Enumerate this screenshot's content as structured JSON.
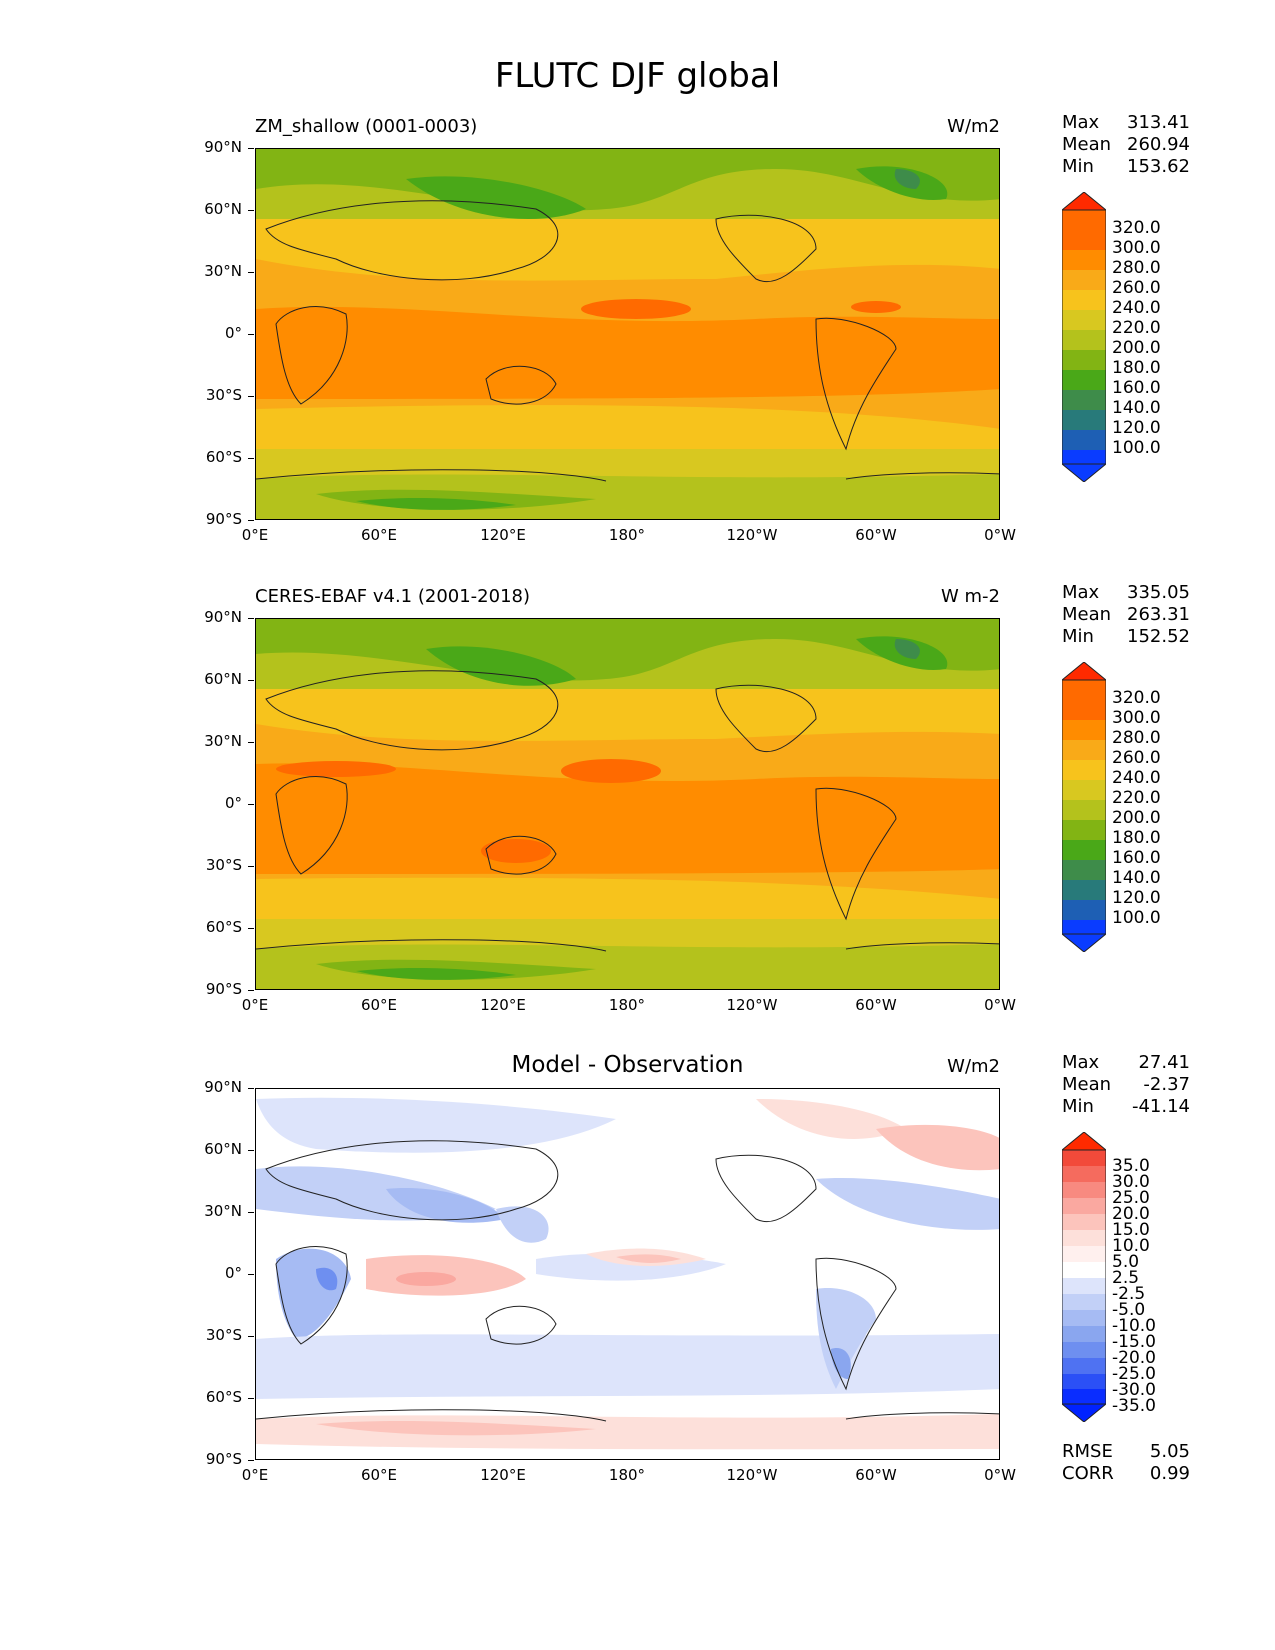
{
  "figure_title": "FLUTC DJF global",
  "x_ticks": [
    "0°E",
    "60°E",
    "120°E",
    "180°",
    "120°W",
    "60°W",
    "0°W"
  ],
  "y_ticks": [
    "90°N",
    "60°N",
    "30°N",
    "0°",
    "30°S",
    "60°S",
    "90°S"
  ],
  "panels": [
    {
      "title": "ZM_shallow (0001-0003)",
      "units": "W/m2",
      "stats": {
        "max_label": "Max",
        "max": "313.41",
        "mean_label": "Mean",
        "mean": "260.94",
        "min_label": "Min",
        "min": "153.62"
      },
      "colorbar": {
        "labels": [
          "320.0",
          "300.0",
          "280.0",
          "260.0",
          "240.0",
          "220.0",
          "200.0",
          "180.0",
          "160.0",
          "140.0",
          "120.0",
          "100.0"
        ]
      }
    },
    {
      "title": "CERES-EBAF v4.1 (2001-2018)",
      "units": "W m-2",
      "stats": {
        "max_label": "Max",
        "max": "335.05",
        "mean_label": "Mean",
        "mean": "263.31",
        "min_label": "Min",
        "min": "152.52"
      },
      "colorbar": {
        "labels": [
          "320.0",
          "300.0",
          "280.0",
          "260.0",
          "240.0",
          "220.0",
          "200.0",
          "180.0",
          "160.0",
          "140.0",
          "120.0",
          "100.0"
        ]
      }
    },
    {
      "title": "Model - Observation",
      "units": "W/m2",
      "stats": {
        "max_label": "Max",
        "max": "27.41",
        "mean_label": "Mean",
        "mean": "-2.37",
        "min_label": "Min",
        "min": "-41.14"
      },
      "colorbar": {
        "labels": [
          "35.0",
          "30.0",
          "25.0",
          "20.0",
          "15.0",
          "10.0",
          "5.0",
          "2.5",
          "-2.5",
          "-5.0",
          "-10.0",
          "-15.0",
          "-20.0",
          "-25.0",
          "-30.0",
          "-35.0"
        ]
      },
      "metrics": {
        "rmse_label": "RMSE",
        "rmse": "5.05",
        "corr_label": "CORR",
        "corr": "0.99"
      }
    }
  ],
  "colors": {
    "abs_scale": [
      "#ff2a00",
      "#ff6a00",
      "#ff8c00",
      "#f9aa18",
      "#f7c31c",
      "#d8c820",
      "#b4c21c",
      "#82b414",
      "#4aa818",
      "#3e8c4a",
      "#287a7a",
      "#1e5fb4",
      "#0a3cff"
    ],
    "diff_scale": [
      "#ff2a00",
      "#f24a3a",
      "#f56b5e",
      "#f88a80",
      "#faa8a0",
      "#fcc4bc",
      "#fde0da",
      "#ffffff",
      "#dde4fb",
      "#c2d0f7",
      "#a6bbf3",
      "#8aa6ef",
      "#6e8ff0",
      "#4f72f2",
      "#2b50f6",
      "#0a2dff",
      "#0022ff"
    ]
  }
}
